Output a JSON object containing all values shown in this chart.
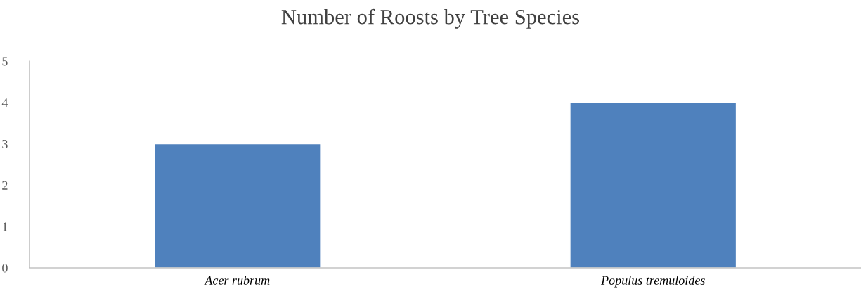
{
  "chart_data": {
    "type": "bar",
    "title": "Number of Roosts by Tree Species",
    "categories": [
      "Acer rubrum",
      "Populus tremuloides"
    ],
    "values": [
      3,
      4
    ],
    "color": "#4f81bd",
    "ylim": [
      0,
      5
    ],
    "yticks": [
      0,
      1,
      2,
      3,
      4,
      5
    ],
    "grid": false
  }
}
